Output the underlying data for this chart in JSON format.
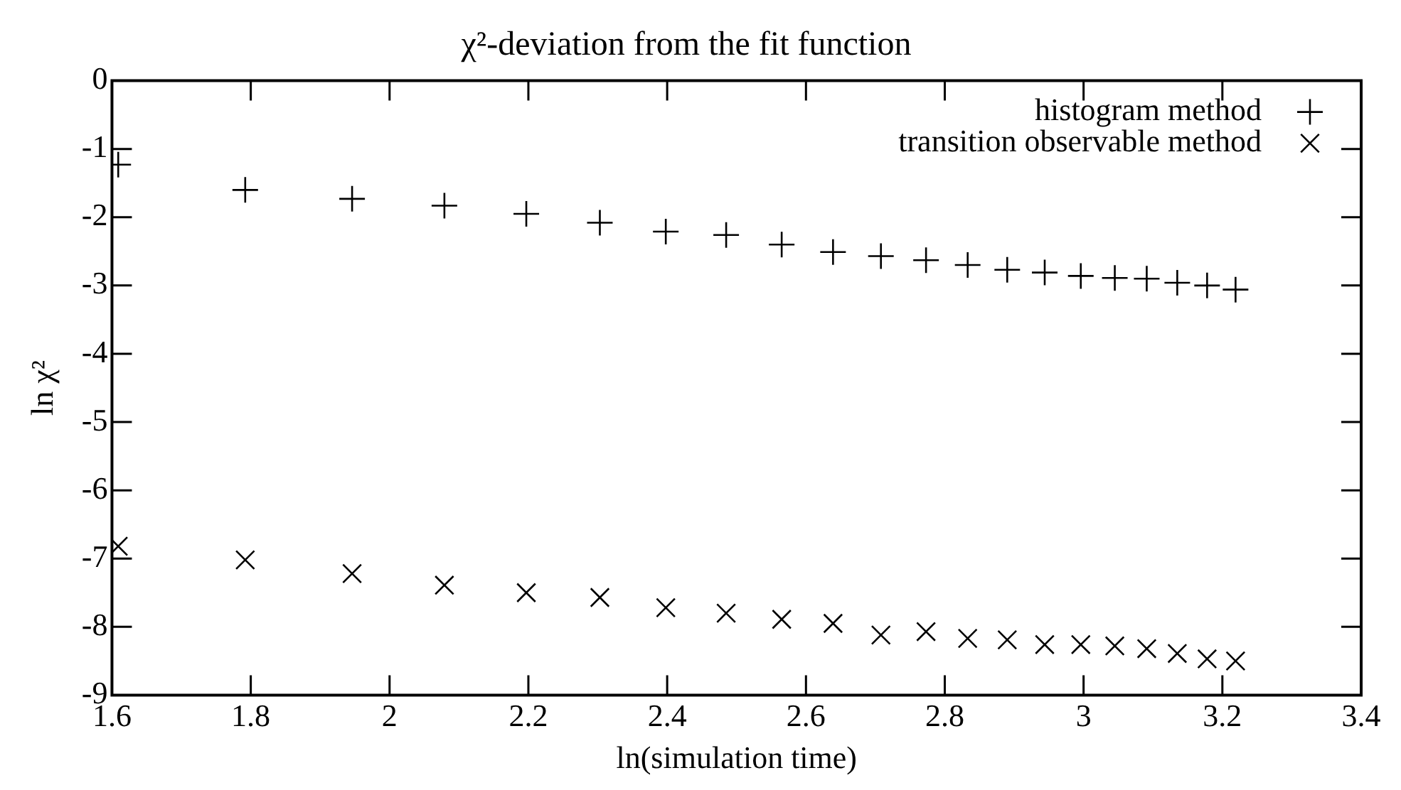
{
  "chart_data": {
    "type": "scatter",
    "title": "χ²-deviation from the fit function",
    "xlabel": "ln(simulation time)",
    "ylabel": "ln χ²",
    "xlim": [
      1.6,
      3.4
    ],
    "xticks": [
      1.6,
      1.8,
      2,
      2.2,
      2.4,
      2.6,
      2.8,
      3,
      3.2,
      3.4
    ],
    "ylim": [
      -9,
      0
    ],
    "yticks": [
      -9,
      -8,
      -7,
      -6,
      -5,
      -4,
      -3,
      -2,
      -1,
      0
    ],
    "grid": false,
    "legend": "top right",
    "x": [
      1.609,
      1.792,
      1.946,
      2.079,
      2.197,
      2.303,
      2.398,
      2.485,
      2.565,
      2.639,
      2.708,
      2.773,
      2.833,
      2.89,
      2.944,
      2.996,
      3.045,
      3.091,
      3.135,
      3.178,
      3.219
    ],
    "series": [
      {
        "name": "histogram method",
        "color": "#000000",
        "marker": "plus",
        "values": [
          -1.23,
          -1.6,
          -1.73,
          -1.83,
          -1.95,
          -2.08,
          -2.21,
          -2.26,
          -2.4,
          -2.51,
          -2.57,
          -2.63,
          -2.7,
          -2.77,
          -2.81,
          -2.86,
          -2.89,
          -2.9,
          -2.96,
          -3.0,
          -3.06
        ]
      },
      {
        "name": "transition observable method",
        "color": "#000000",
        "marker": "cross",
        "values": [
          -6.82,
          -7.02,
          -7.22,
          -7.39,
          -7.5,
          -7.57,
          -7.72,
          -7.8,
          -7.89,
          -7.95,
          -8.12,
          -8.07,
          -8.17,
          -8.19,
          -8.26,
          -8.26,
          -8.28,
          -8.32,
          -8.39,
          -8.47,
          -8.5
        ]
      }
    ]
  }
}
